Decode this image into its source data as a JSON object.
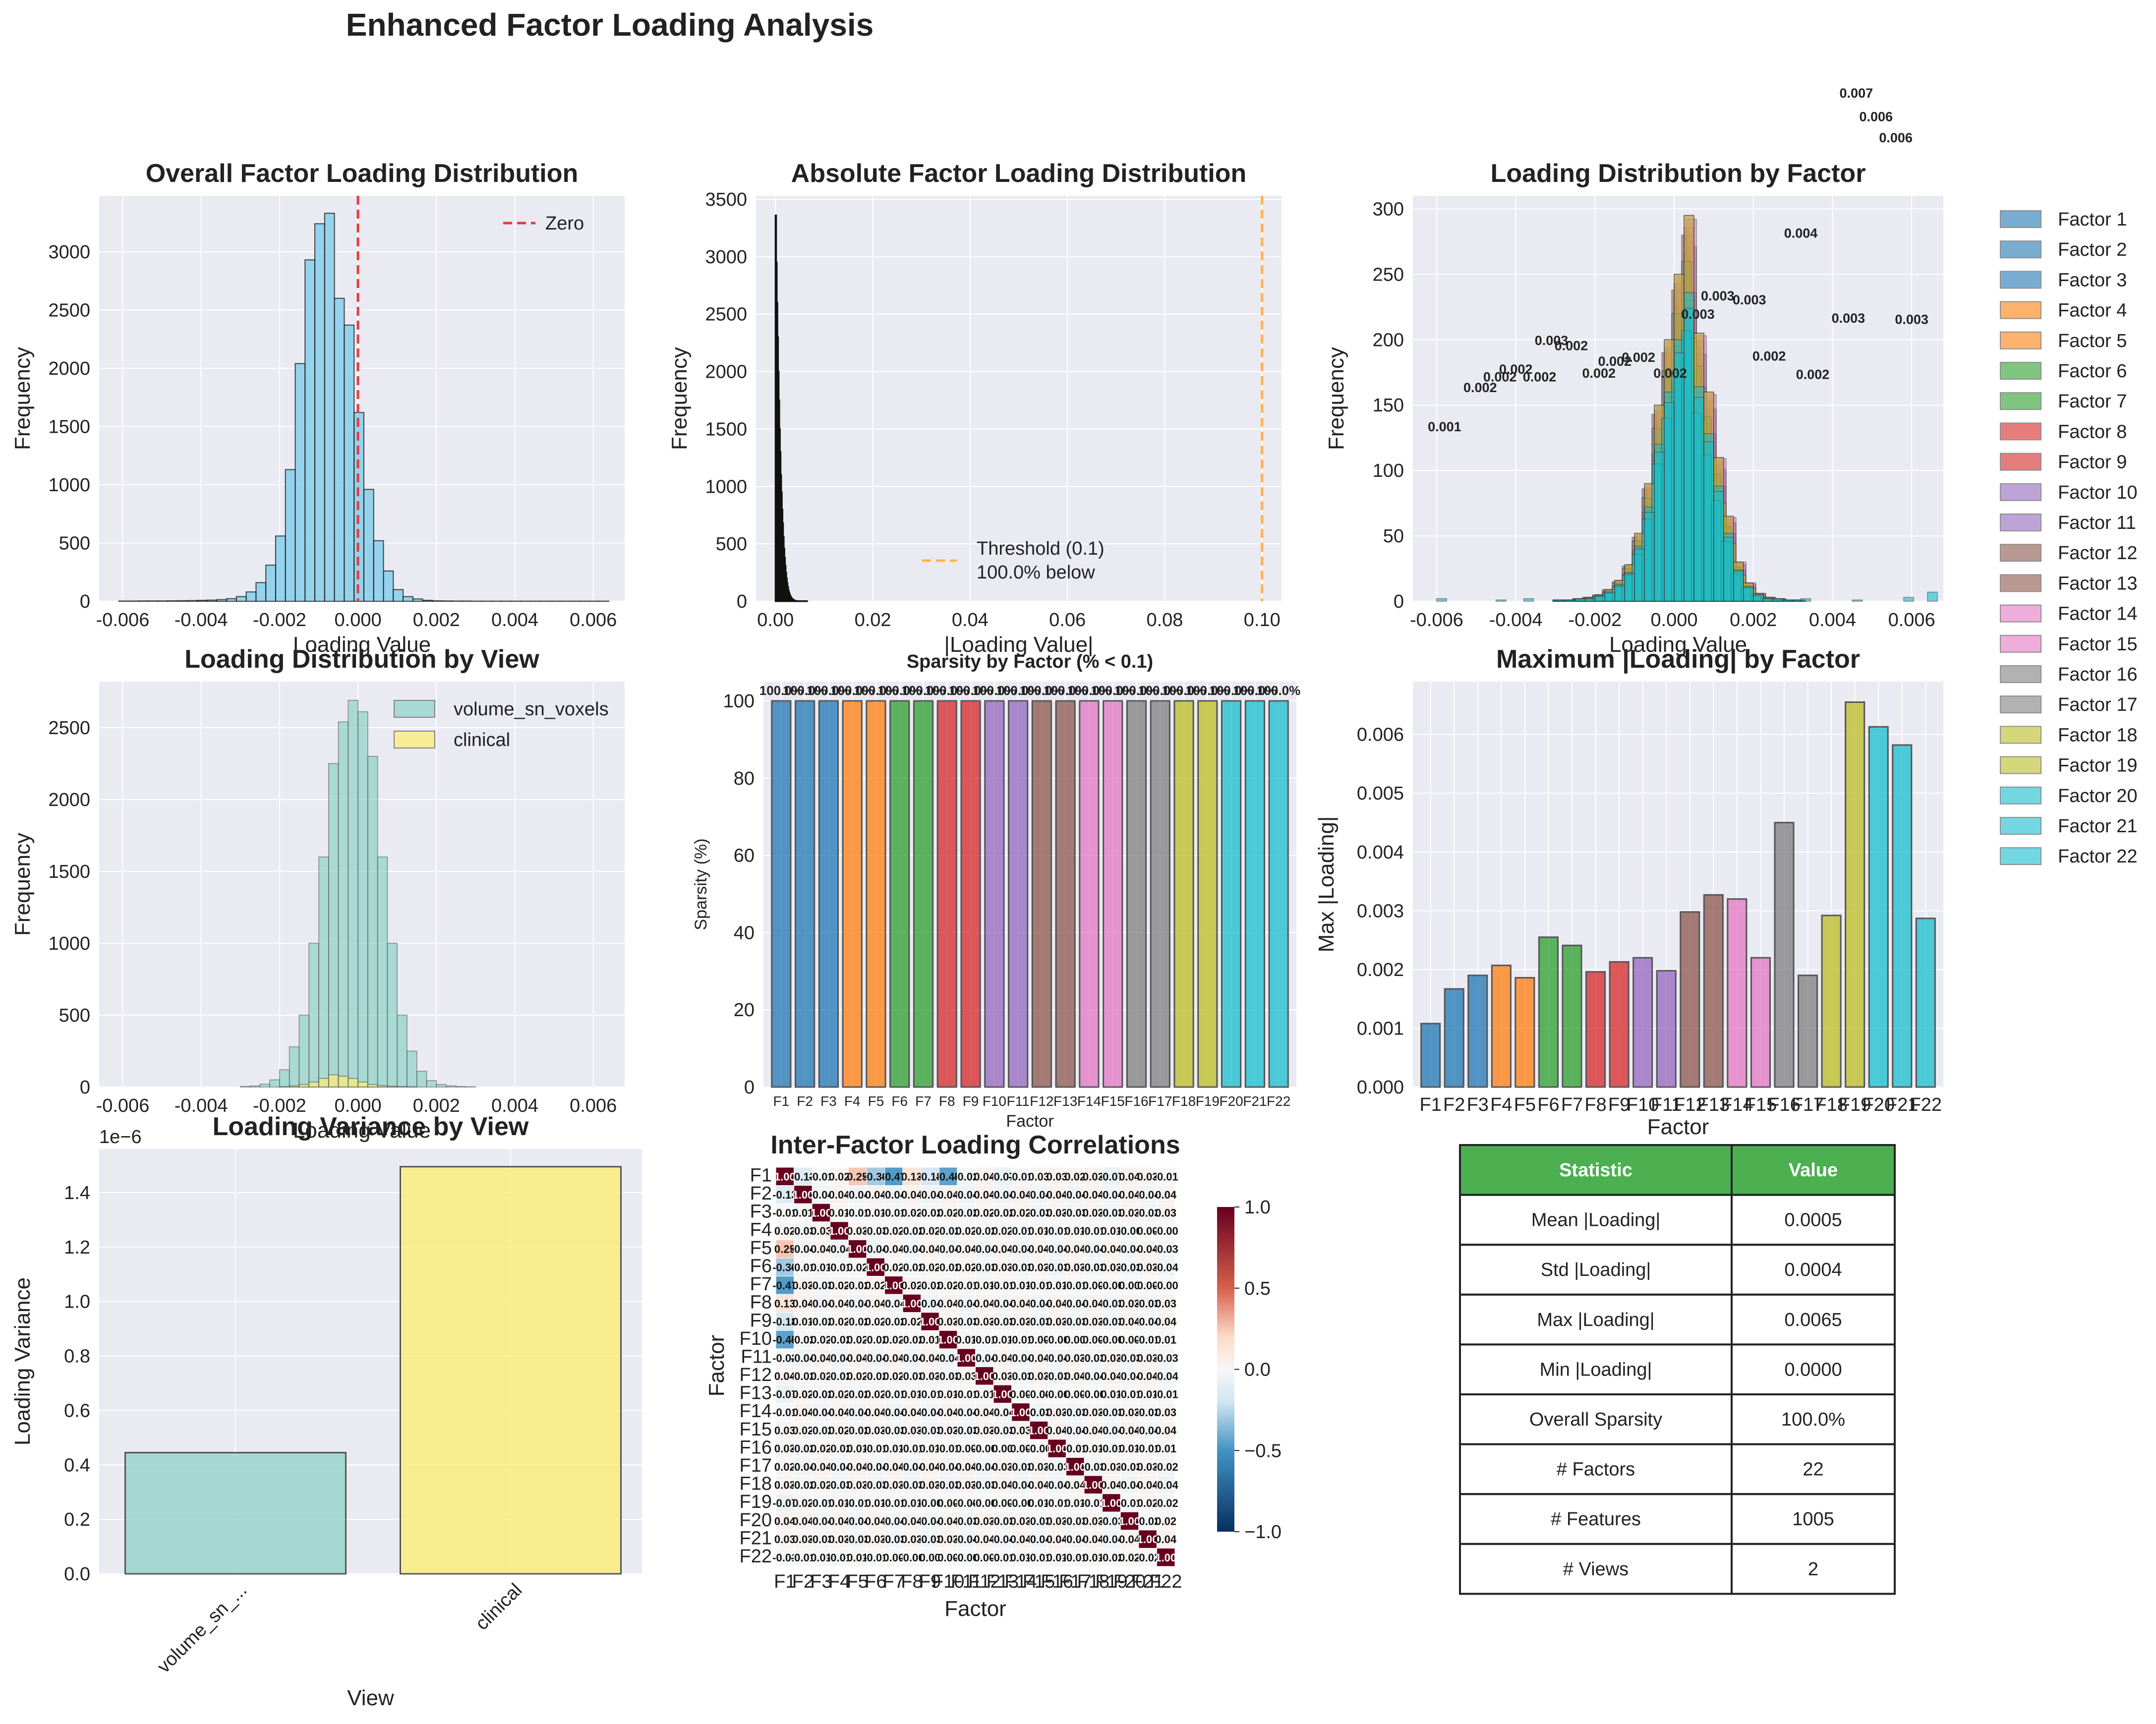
{
  "figure": {
    "title": "Enhanced Factor Loading Analysis"
  },
  "colors": {
    "panel_bg": "#eaeaf2",
    "hist_blue": "#87ceeb",
    "zero_line": "#e8393c",
    "threshold_line": "#ffb347",
    "teal": "#8dd3c7",
    "yellow": "#ffed6f",
    "table_header": "#4caf50",
    "factor_palette": [
      "#1f77b4",
      "#1f77b4",
      "#1f77b4",
      "#ff7f0e",
      "#ff7f0e",
      "#2ca02c",
      "#2ca02c",
      "#d62728",
      "#d62728",
      "#9467bd",
      "#9467bd",
      "#8c564b",
      "#8c564b",
      "#e377c2",
      "#e377c2",
      "#7f7f7f",
      "#7f7f7f",
      "#bcbd22",
      "#bcbd22",
      "#17becf",
      "#17becf",
      "#17becf"
    ]
  },
  "chart_data": [
    {
      "id": "overall",
      "type": "bar",
      "title": "Overall Factor Loading Distribution",
      "xlabel": "Loading Value",
      "ylabel": "Frequency",
      "xlim": [
        -0.0066,
        0.0068
      ],
      "ylim": [
        0,
        3480
      ],
      "xticks": [
        "-0.006",
        "-0.004",
        "-0.002",
        "0.000",
        "0.002",
        "0.004",
        "0.006"
      ],
      "xtick_values": [
        -0.006,
        -0.004,
        -0.002,
        0,
        0.002,
        0.004,
        0.006
      ],
      "yticks": [
        "0",
        "500",
        "1000",
        "1500",
        "2000",
        "2500",
        "3000"
      ],
      "ytick_values": [
        0,
        500,
        1000,
        1500,
        2000,
        2500,
        3000
      ],
      "legend": [
        "Zero"
      ],
      "legend_position": "top-right",
      "zero_line": 0,
      "bin_start": -0.0061,
      "bin_width": 0.00025,
      "values": [
        2,
        2,
        3,
        3,
        3,
        4,
        5,
        6,
        8,
        10,
        14,
        22,
        40,
        80,
        160,
        310,
        560,
        1130,
        2040,
        2930,
        3240,
        3330,
        2600,
        2370,
        1620,
        960,
        520,
        260,
        100,
        40,
        20,
        8,
        4,
        3,
        2,
        2,
        1,
        1,
        1,
        1,
        1,
        1,
        1,
        1,
        1,
        1,
        1,
        1,
        1,
        1
      ]
    },
    {
      "id": "absolute",
      "type": "bar",
      "title": "Absolute Factor Loading Distribution",
      "xlabel": "|Loading Value|",
      "ylabel": "Frequency",
      "xlim": [
        -0.004,
        0.104
      ],
      "ylim": [
        0,
        3530
      ],
      "xticks": [
        "0.00",
        "0.02",
        "0.04",
        "0.06",
        "0.08",
        "0.10"
      ],
      "xtick_values": [
        0,
        0.02,
        0.04,
        0.06,
        0.08,
        0.1
      ],
      "yticks": [
        "0",
        "500",
        "1000",
        "1500",
        "2000",
        "2500",
        "3000",
        "3500"
      ],
      "ytick_values": [
        0,
        500,
        1000,
        1500,
        2000,
        2500,
        3000,
        3500
      ],
      "threshold": 0.1,
      "legend": [
        "Threshold (0.1)",
        "100.0% below"
      ],
      "legend_position": "lower-center",
      "bin_width": 0.00013,
      "values": [
        3360,
        2950,
        2600,
        2300,
        2000,
        1750,
        1500,
        1300,
        1100,
        950,
        800,
        680,
        560,
        460,
        380,
        310,
        250,
        200,
        160,
        125,
        95,
        75,
        58,
        44,
        34,
        26,
        20,
        15,
        11,
        8,
        6,
        4,
        3,
        2,
        2,
        1,
        1,
        1,
        1,
        1,
        1,
        1,
        1,
        1,
        1,
        1,
        1,
        1,
        1,
        1
      ]
    },
    {
      "id": "by_factor",
      "type": "bar",
      "title": "Loading Distribution by Factor",
      "xlabel": "Loading Value",
      "ylabel": "Frequency",
      "xlim": [
        -0.0066,
        0.0068
      ],
      "ylim": [
        0,
        310
      ],
      "xticks": [
        "-0.006",
        "-0.004",
        "-0.002",
        "0.000",
        "0.002",
        "0.004",
        "0.006"
      ],
      "xtick_values": [
        -0.006,
        -0.004,
        -0.002,
        0,
        0.002,
        0.004,
        0.006
      ],
      "yticks": [
        "0",
        "50",
        "100",
        "150",
        "200",
        "250",
        "300"
      ],
      "ytick_values": [
        0,
        50,
        100,
        150,
        200,
        250,
        300
      ],
      "legend_position": "outside-right",
      "series": [
        {
          "name": "Factor 1"
        },
        {
          "name": "Factor 2"
        },
        {
          "name": "Factor 3"
        },
        {
          "name": "Factor 4"
        },
        {
          "name": "Factor 5"
        },
        {
          "name": "Factor 6"
        },
        {
          "name": "Factor 7"
        },
        {
          "name": "Factor 8"
        },
        {
          "name": "Factor 9"
        },
        {
          "name": "Factor 10"
        },
        {
          "name": "Factor 11"
        },
        {
          "name": "Factor 12"
        },
        {
          "name": "Factor 13"
        },
        {
          "name": "Factor 14"
        },
        {
          "name": "Factor 15"
        },
        {
          "name": "Factor 16"
        },
        {
          "name": "Factor 17"
        },
        {
          "name": "Factor 18"
        },
        {
          "name": "Factor 19"
        },
        {
          "name": "Factor 20"
        },
        {
          "name": "Factor 21"
        },
        {
          "name": "Factor 22"
        }
      ],
      "bin_width": 0.00025,
      "overlay_values": [
        1,
        1,
        2,
        3,
        5,
        9,
        16,
        28,
        52,
        90,
        150,
        200,
        250,
        295,
        205,
        160,
        110,
        65,
        30,
        14,
        6,
        3,
        2,
        1,
        1
      ],
      "overlay_start": -0.003,
      "annotations": [
        {
          "x": -0.0058,
          "y": 130,
          "text": "0.001"
        },
        {
          "x": -0.0049,
          "y": 160,
          "text": "0.002"
        },
        {
          "x": -0.0044,
          "y": 168,
          "text": "0.002"
        },
        {
          "x": -0.004,
          "y": 174,
          "text": "0.002"
        },
        {
          "x": -0.0034,
          "y": 168,
          "text": "0.002"
        },
        {
          "x": -0.0031,
          "y": 196,
          "text": "0.003"
        },
        {
          "x": -0.0026,
          "y": 192,
          "text": "0.002"
        },
        {
          "x": -0.0019,
          "y": 171,
          "text": "0.002"
        },
        {
          "x": -0.0015,
          "y": 180,
          "text": "0.002"
        },
        {
          "x": -0.0009,
          "y": 183,
          "text": "0.002"
        },
        {
          "x": -0.0001,
          "y": 171,
          "text": "0.002"
        },
        {
          "x": 0.0006,
          "y": 216,
          "text": "0.003"
        },
        {
          "x": 0.0011,
          "y": 230,
          "text": "0.003"
        },
        {
          "x": 0.0019,
          "y": 227,
          "text": "0.003"
        },
        {
          "x": 0.0024,
          "y": 184,
          "text": "0.002"
        },
        {
          "x": 0.0032,
          "y": 278,
          "text": "0.004"
        },
        {
          "x": 0.0035,
          "y": 170,
          "text": "0.002"
        },
        {
          "x": 0.0044,
          "y": 213,
          "text": "0.003"
        },
        {
          "x": 0.006,
          "y": 212,
          "text": "0.003"
        },
        {
          "x": 0.0046,
          "y": 385,
          "text": "0.007"
        },
        {
          "x": 0.0051,
          "y": 367,
          "text": "0.006"
        },
        {
          "x": 0.0056,
          "y": 351,
          "text": "0.006"
        }
      ]
    },
    {
      "id": "by_view",
      "type": "bar",
      "title": "Loading Distribution by View",
      "xlabel": "Loading Value",
      "ylabel": "Frequency",
      "xlim": [
        -0.0066,
        0.0068
      ],
      "ylim": [
        0,
        2820
      ],
      "xticks": [
        "-0.006",
        "-0.004",
        "-0.002",
        "0.000",
        "0.002",
        "0.004",
        "0.006"
      ],
      "xtick_values": [
        -0.006,
        -0.004,
        -0.002,
        0,
        0.002,
        0.004,
        0.006
      ],
      "yticks": [
        "0",
        "500",
        "1000",
        "1500",
        "2000",
        "2500"
      ],
      "ytick_values": [
        0,
        500,
        1000,
        1500,
        2000,
        2500
      ],
      "legend_position": "top-right",
      "bin_width": 0.00025,
      "series": [
        {
          "name": "volume_sn_voxels",
          "start": -0.003,
          "values": [
            4,
            8,
            20,
            50,
            120,
            280,
            500,
            1000,
            1600,
            2250,
            2540,
            2690,
            2610,
            2300,
            1600,
            1000,
            500,
            250,
            110,
            45,
            18,
            8,
            4,
            2
          ]
        },
        {
          "name": "clinical",
          "start": -0.002,
          "values": [
            3,
            8,
            18,
            35,
            60,
            85,
            75,
            60,
            35,
            18,
            10,
            6,
            3,
            2
          ]
        }
      ]
    },
    {
      "id": "sparsity",
      "type": "bar",
      "title": "Sparsity by Factor (% < 0.1)",
      "xlabel": "Factor",
      "ylabel": "Sparsity (%)",
      "ylim": [
        0,
        105
      ],
      "yticks": [
        "0",
        "20",
        "40",
        "60",
        "80",
        "100"
      ],
      "ytick_values": [
        0,
        20,
        40,
        60,
        80,
        100
      ],
      "categories": [
        "F1",
        "F2",
        "F3",
        "F4",
        "F5",
        "F6",
        "F7",
        "F8",
        "F9",
        "F10",
        "F11",
        "F12",
        "F13",
        "F14",
        "F15",
        "F16",
        "F17",
        "F18",
        "F19",
        "F20",
        "F21",
        "F22"
      ],
      "values": [
        100,
        100,
        100,
        100,
        100,
        100,
        100,
        100,
        100,
        100,
        100,
        100,
        100,
        100,
        100,
        100,
        100,
        100,
        100,
        100,
        100,
        100
      ],
      "data_labels": [
        "100.0%",
        "100.0%",
        "100.0%",
        "100.0%",
        "100.0%",
        "100.0%",
        "100.0%",
        "100.0%",
        "100.0%",
        "100.0%",
        "100.0%",
        "100.0%",
        "100.0%",
        "100.0%",
        "100.0%",
        "100.0%",
        "100.0%",
        "100.0%",
        "100.0%",
        "100.0%",
        "100.0%",
        "100.0%"
      ]
    },
    {
      "id": "max_loading",
      "type": "bar",
      "title": "Maximum |Loading| by Factor",
      "xlabel": "Factor",
      "ylabel": "Max |Loading|",
      "ylim": [
        0,
        0.0069
      ],
      "yticks": [
        "0.000",
        "0.001",
        "0.002",
        "0.003",
        "0.004",
        "0.005",
        "0.006"
      ],
      "ytick_values": [
        0,
        0.001,
        0.002,
        0.003,
        0.004,
        0.005,
        0.006
      ],
      "categories": [
        "F1",
        "F2",
        "F3",
        "F4",
        "F5",
        "F6",
        "F7",
        "F8",
        "F9",
        "F10",
        "F11",
        "F12",
        "F13",
        "F14",
        "F15",
        "F16",
        "F17",
        "F18",
        "F19",
        "F20",
        "F21",
        "F22"
      ],
      "values": [
        0.00108,
        0.00167,
        0.0019,
        0.00207,
        0.00186,
        0.00255,
        0.00241,
        0.00196,
        0.00213,
        0.0022,
        0.00198,
        0.00298,
        0.00327,
        0.0032,
        0.0022,
        0.0045,
        0.0019,
        0.00292,
        0.00655,
        0.00613,
        0.00582,
        0.00287
      ]
    },
    {
      "id": "variance",
      "type": "bar",
      "title": "Loading Variance by View",
      "xlabel": "View",
      "ylabel": "Loading Variance",
      "offset_text": "1e−6",
      "ylim": [
        0,
        1.56
      ],
      "yticks": [
        "0.0",
        "0.2",
        "0.4",
        "0.6",
        "0.8",
        "1.0",
        "1.2",
        "1.4"
      ],
      "ytick_values": [
        0,
        0.2,
        0.4,
        0.6,
        0.8,
        1.0,
        1.2,
        1.4
      ],
      "categories": [
        "volume_sn_...",
        "clinical"
      ],
      "values": [
        0.445,
        1.495
      ]
    },
    {
      "id": "correlation",
      "type": "heatmap",
      "title": "Inter-Factor Loading Correlations",
      "xlabel": "Factor",
      "ylabel": "Factor",
      "categories": [
        "F1",
        "F2",
        "F3",
        "F4",
        "F5",
        "F6",
        "F7",
        "F8",
        "F9",
        "F10",
        "F11",
        "F12",
        "F13",
        "F14",
        "F15",
        "F16",
        "F17",
        "F18",
        "F19",
        "F20",
        "F21",
        "F22"
      ],
      "colorbar_ticks": [
        "1.0",
        "0.5",
        "0.0",
        "−0.5",
        "−1.0"
      ],
      "colorbar_values": [
        1.0,
        0.5,
        0.0,
        -0.5,
        -1.0
      ],
      "first_row": [
        1.0,
        -0.13,
        -0.01,
        0.02,
        0.25,
        -0.3,
        -0.47,
        0.13,
        -0.18,
        -0.45,
        -0.02,
        0.04,
        -0.07,
        -0.01,
        0.03,
        0.03,
        0.02,
        0.03,
        -0.07,
        0.04,
        0.03,
        -0.01
      ]
    }
  ],
  "table": {
    "headers": [
      "Statistic",
      "Value"
    ],
    "rows": [
      [
        "Mean |Loading|",
        "0.0005"
      ],
      [
        "Std |Loading|",
        "0.0004"
      ],
      [
        "Max |Loading|",
        "0.0065"
      ],
      [
        "Min |Loading|",
        "0.0000"
      ],
      [
        "Overall Sparsity",
        "100.0%"
      ],
      [
        "# Factors",
        "22"
      ],
      [
        "# Features",
        "1005"
      ],
      [
        "# Views",
        "2"
      ]
    ]
  }
}
